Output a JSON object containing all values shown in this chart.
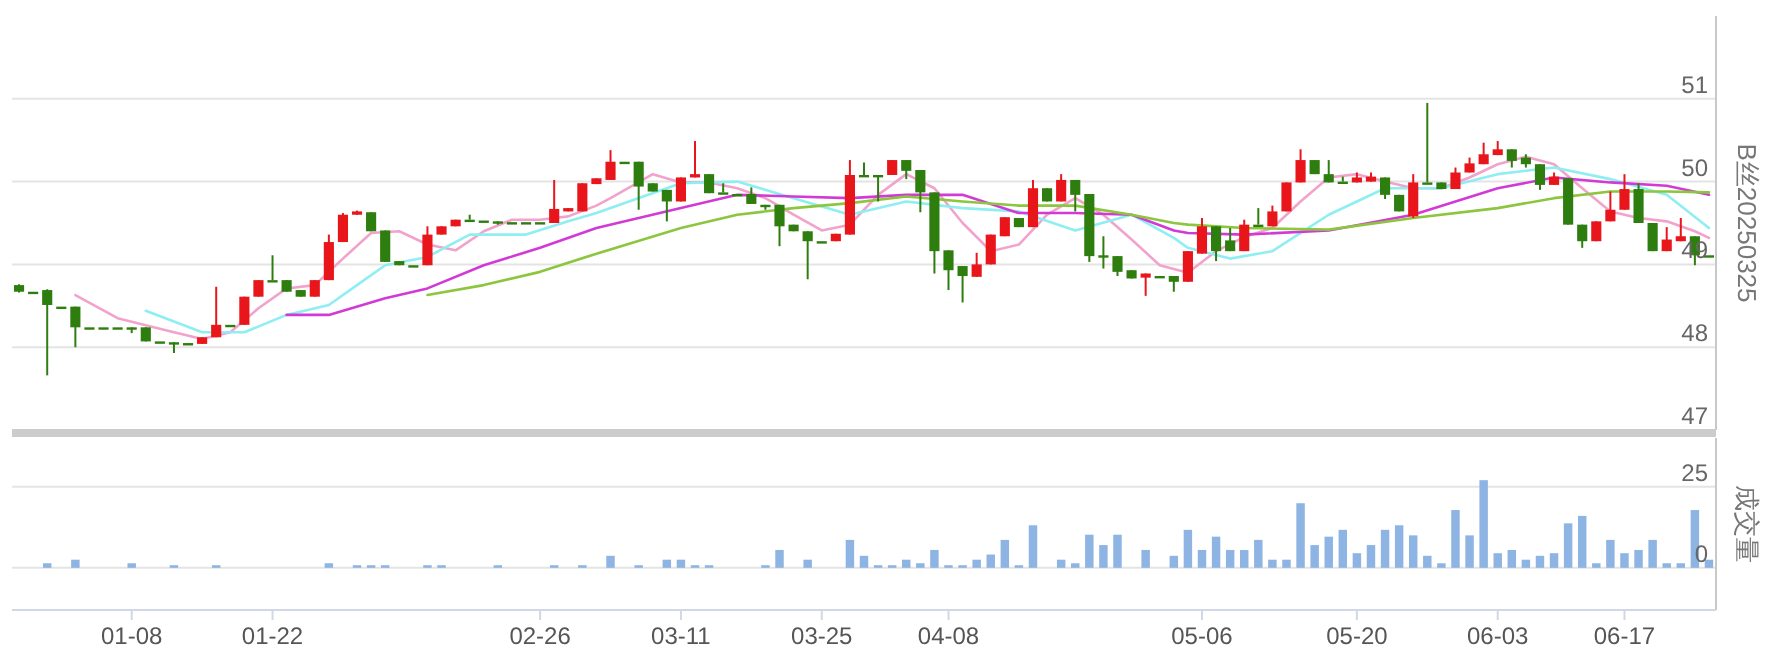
{
  "chart_data": [
    {
      "type": "candlestick",
      "ylabel": "B丝20250325",
      "tick_labels": "y",
      "grid": "y",
      "ylim": [
        47,
        52
      ],
      "yticks": [
        47,
        48,
        49,
        50,
        51
      ],
      "categories": [
        null,
        null,
        null,
        null,
        null,
        null,
        null,
        null,
        null,
        null,
        null,
        null,
        null,
        null,
        null,
        null,
        null,
        null,
        null,
        null,
        null,
        null,
        null,
        null,
        null,
        null,
        null,
        null,
        null,
        null,
        null,
        null,
        null,
        null,
        null,
        null,
        null,
        null,
        null,
        null,
        null,
        null,
        null,
        null,
        null,
        null,
        null,
        null,
        null,
        null,
        null,
        null,
        null,
        null,
        null,
        null,
        null,
        null,
        null,
        null,
        null,
        null,
        null,
        null,
        null,
        null,
        null,
        null,
        null,
        null,
        null,
        null,
        null,
        null,
        null,
        null,
        null,
        null,
        null,
        null,
        null,
        null,
        null,
        null,
        null,
        null,
        null,
        null,
        null,
        null,
        null,
        null,
        null,
        null,
        null,
        null,
        null,
        null,
        null,
        null,
        null,
        null,
        null,
        null,
        null,
        null,
        null,
        null,
        null,
        null,
        null,
        null,
        null,
        null,
        null,
        null,
        null,
        null,
        null,
        null,
        null
      ],
      "ohlc": [
        [
          48.75,
          48.76,
          48.66,
          48.67
        ],
        [
          48.67,
          48.67,
          48.67,
          48.67
        ],
        [
          48.69,
          48.7,
          47.66,
          48.51
        ],
        [
          48.49,
          48.49,
          48.49,
          48.49
        ],
        [
          48.49,
          48.49,
          48.0,
          48.24
        ],
        [
          48.24,
          48.24,
          48.24,
          48.24
        ],
        [
          48.24,
          48.24,
          48.24,
          48.24
        ],
        [
          48.24,
          48.24,
          48.24,
          48.24
        ],
        [
          48.24,
          48.24,
          48.17,
          48.24
        ],
        [
          48.24,
          48.24,
          48.07,
          48.07
        ],
        [
          48.07,
          48.07,
          48.07,
          48.07
        ],
        [
          48.06,
          48.06,
          47.93,
          48.05
        ],
        [
          48.05,
          48.05,
          48.05,
          48.05
        ],
        [
          48.04,
          48.12,
          48.04,
          48.12
        ],
        [
          48.12,
          48.73,
          48.12,
          48.27
        ],
        [
          48.27,
          48.27,
          48.27,
          48.27
        ],
        [
          48.27,
          48.61,
          48.27,
          48.61
        ],
        [
          48.61,
          48.81,
          48.61,
          48.81
        ],
        [
          48.81,
          49.11,
          48.81,
          48.81
        ],
        [
          48.81,
          48.81,
          48.67,
          48.67
        ],
        [
          48.69,
          48.69,
          48.61,
          48.61
        ],
        [
          48.61,
          48.81,
          48.61,
          48.81
        ],
        [
          48.81,
          49.36,
          48.81,
          49.27
        ],
        [
          49.27,
          49.62,
          49.27,
          49.6
        ],
        [
          49.6,
          49.65,
          49.6,
          49.64
        ],
        [
          49.63,
          49.63,
          49.4,
          49.4
        ],
        [
          49.41,
          49.41,
          49.03,
          49.03
        ],
        [
          49.04,
          49.04,
          48.99,
          48.99
        ],
        [
          48.99,
          48.99,
          48.99,
          48.99
        ],
        [
          48.99,
          49.46,
          48.99,
          49.36
        ],
        [
          49.36,
          49.46,
          49.36,
          49.46
        ],
        [
          49.46,
          49.54,
          49.46,
          49.54
        ],
        [
          49.54,
          49.6,
          49.54,
          49.54
        ],
        [
          49.53,
          49.53,
          49.53,
          49.53
        ],
        [
          49.52,
          49.52,
          49.48,
          49.52
        ],
        [
          49.51,
          49.51,
          49.51,
          49.51
        ],
        [
          49.51,
          49.51,
          49.51,
          49.51
        ],
        [
          49.51,
          49.51,
          49.51,
          49.51
        ],
        [
          49.5,
          50.02,
          49.5,
          49.67
        ],
        [
          49.64,
          49.68,
          49.64,
          49.68
        ],
        [
          49.64,
          49.98,
          49.64,
          49.98
        ],
        [
          49.97,
          50.04,
          49.97,
          50.04
        ],
        [
          50.02,
          50.38,
          50.02,
          50.24
        ],
        [
          50.24,
          50.24,
          50.24,
          50.24
        ],
        [
          50.24,
          50.24,
          49.66,
          49.94
        ],
        [
          49.98,
          49.98,
          49.88,
          49.88
        ],
        [
          49.9,
          49.9,
          49.52,
          49.76
        ],
        [
          49.76,
          50.05,
          49.76,
          50.05
        ],
        [
          50.05,
          50.49,
          50.05,
          50.09
        ],
        [
          50.09,
          50.09,
          49.86,
          49.86
        ],
        [
          49.87,
          49.98,
          49.87,
          49.87
        ],
        [
          49.85,
          49.85,
          49.85,
          49.85
        ],
        [
          49.85,
          49.93,
          49.73,
          49.73
        ],
        [
          49.72,
          49.72,
          49.66,
          49.72
        ],
        [
          49.72,
          49.72,
          49.22,
          49.46
        ],
        [
          49.48,
          49.48,
          49.4,
          49.4
        ],
        [
          49.4,
          49.4,
          48.82,
          49.28
        ],
        [
          49.28,
          49.28,
          49.28,
          49.28
        ],
        [
          49.28,
          49.37,
          49.28,
          49.37
        ],
        [
          49.36,
          50.26,
          49.36,
          50.08
        ],
        [
          50.08,
          50.23,
          50.08,
          50.08
        ],
        [
          50.08,
          50.08,
          49.76,
          50.08
        ],
        [
          50.08,
          50.26,
          50.08,
          50.26
        ],
        [
          50.26,
          50.26,
          50.03,
          50.13
        ],
        [
          50.14,
          50.14,
          49.63,
          49.87
        ],
        [
          49.87,
          49.87,
          48.89,
          49.16
        ],
        [
          49.17,
          49.17,
          48.69,
          48.93
        ],
        [
          48.98,
          48.98,
          48.54,
          48.86
        ],
        [
          48.85,
          49.14,
          48.85,
          49.0
        ],
        [
          49.0,
          49.36,
          49.0,
          49.36
        ],
        [
          49.34,
          49.57,
          49.34,
          49.57
        ],
        [
          49.56,
          49.56,
          49.45,
          49.45
        ],
        [
          49.45,
          50.02,
          49.45,
          49.92
        ],
        [
          49.92,
          49.92,
          49.76,
          49.76
        ],
        [
          49.76,
          50.09,
          49.76,
          50.02
        ],
        [
          50.02,
          50.02,
          49.64,
          49.84
        ],
        [
          49.85,
          49.85,
          49.03,
          49.1
        ],
        [
          49.11,
          49.34,
          48.95,
          49.11
        ],
        [
          49.1,
          49.1,
          48.86,
          48.91
        ],
        [
          48.93,
          48.93,
          48.83,
          48.83
        ],
        [
          48.84,
          48.89,
          48.62,
          48.89
        ],
        [
          48.86,
          48.86,
          48.86,
          48.86
        ],
        [
          48.86,
          48.86,
          48.67,
          48.79
        ],
        [
          48.79,
          49.16,
          48.79,
          49.16
        ],
        [
          49.13,
          49.56,
          49.13,
          49.46
        ],
        [
          49.46,
          49.46,
          49.04,
          49.16
        ],
        [
          49.29,
          49.44,
          49.16,
          49.16
        ],
        [
          49.16,
          49.54,
          49.16,
          49.48
        ],
        [
          49.48,
          49.68,
          49.48,
          49.48
        ],
        [
          49.46,
          49.71,
          49.46,
          49.64
        ],
        [
          49.64,
          49.99,
          49.64,
          49.99
        ],
        [
          49.99,
          50.39,
          49.99,
          50.26
        ],
        [
          50.26,
          50.26,
          50.09,
          50.09
        ],
        [
          50.09,
          50.26,
          49.99,
          49.99
        ],
        [
          50.0,
          50.06,
          50.0,
          50.0
        ],
        [
          49.99,
          50.11,
          49.99,
          50.05
        ],
        [
          50.0,
          50.11,
          50.0,
          50.06
        ],
        [
          50.05,
          50.05,
          49.79,
          49.84
        ],
        [
          49.84,
          49.84,
          49.64,
          49.64
        ],
        [
          49.58,
          50.09,
          49.56,
          49.99
        ],
        [
          49.99,
          50.95,
          49.99,
          49.99
        ],
        [
          49.99,
          49.99,
          49.91,
          49.91
        ],
        [
          49.91,
          50.17,
          49.91,
          50.11
        ],
        [
          50.11,
          50.29,
          50.11,
          50.22
        ],
        [
          50.21,
          50.47,
          50.21,
          50.33
        ],
        [
          50.32,
          50.49,
          50.32,
          50.39
        ],
        [
          50.39,
          50.39,
          50.17,
          50.25
        ],
        [
          50.29,
          50.33,
          50.17,
          50.21
        ],
        [
          50.21,
          50.21,
          49.9,
          49.96
        ],
        [
          49.96,
          50.11,
          49.96,
          50.06
        ],
        [
          50.04,
          50.04,
          49.48,
          49.48
        ],
        [
          49.48,
          49.48,
          49.2,
          49.28
        ],
        [
          49.28,
          49.52,
          49.28,
          49.52
        ],
        [
          49.52,
          49.88,
          49.52,
          49.66
        ],
        [
          49.66,
          50.09,
          49.66,
          49.91
        ],
        [
          49.91,
          49.98,
          49.5,
          49.5
        ],
        [
          49.5,
          49.5,
          49.16,
          49.16
        ],
        [
          49.16,
          49.45,
          49.16,
          49.3
        ],
        [
          49.28,
          49.56,
          49.28,
          49.34
        ],
        [
          49.34,
          49.34,
          48.99,
          49.11
        ],
        [
          49.11,
          49.11,
          49.11,
          49.11
        ]
      ],
      "colors": [
        "#2e7d0f",
        "#2e7d0f",
        "#2e7d0f",
        "#2e7d0f",
        "#2e7d0f",
        "#2e7d0f",
        "#2e7d0f",
        "#2e7d0f",
        "#2e7d0f",
        "#2e7d0f",
        "#2e7d0f",
        "#2e7d0f",
        "#2e7d0f",
        "#e8161b",
        "#e8161b",
        "#2e7d0f",
        "#e8161b",
        "#e8161b",
        "#2e7d0f",
        "#2e7d0f",
        "#2e7d0f",
        "#e8161b",
        "#e8161b",
        "#e8161b",
        "#e8161b",
        "#2e7d0f",
        "#2e7d0f",
        "#2e7d0f",
        "#2e7d0f",
        "#e8161b",
        "#e8161b",
        "#e8161b",
        "#2e7d0f",
        "#2e7d0f",
        "#2e7d0f",
        "#2e7d0f",
        "#2e7d0f",
        "#2e7d0f",
        "#e8161b",
        "#e8161b",
        "#e8161b",
        "#e8161b",
        "#e8161b",
        "#2e7d0f",
        "#2e7d0f",
        "#2e7d0f",
        "#2e7d0f",
        "#e8161b",
        "#e8161b",
        "#2e7d0f",
        "#2e7d0f",
        "#2e7d0f",
        "#2e7d0f",
        "#2e7d0f",
        "#2e7d0f",
        "#2e7d0f",
        "#2e7d0f",
        "#2e7d0f",
        "#e8161b",
        "#e8161b",
        "#2e7d0f",
        "#2e7d0f",
        "#e8161b",
        "#2e7d0f",
        "#2e7d0f",
        "#2e7d0f",
        "#2e7d0f",
        "#2e7d0f",
        "#e8161b",
        "#e8161b",
        "#e8161b",
        "#2e7d0f",
        "#e8161b",
        "#2e7d0f",
        "#e8161b",
        "#2e7d0f",
        "#2e7d0f",
        "#2e7d0f",
        "#2e7d0f",
        "#2e7d0f",
        "#e8161b",
        "#2e7d0f",
        "#2e7d0f",
        "#e8161b",
        "#e8161b",
        "#2e7d0f",
        "#2e7d0f",
        "#e8161b",
        "#2e7d0f",
        "#e8161b",
        "#e8161b",
        "#e8161b",
        "#2e7d0f",
        "#2e7d0f",
        "#2e7d0f",
        "#e8161b",
        "#e8161b",
        "#2e7d0f",
        "#2e7d0f",
        "#e8161b",
        "#2e7d0f",
        "#2e7d0f",
        "#e8161b",
        "#e8161b",
        "#e8161b",
        "#e8161b",
        "#2e7d0f",
        "#2e7d0f",
        "#2e7d0f",
        "#e8161b",
        "#2e7d0f",
        "#2e7d0f",
        "#e8161b",
        "#e8161b",
        "#e8161b",
        "#2e7d0f",
        "#2e7d0f",
        "#e8161b",
        "#e8161b",
        "#2e7d0f",
        "#2e7d0f"
      ],
      "series": [
        {
          "type": "line",
          "color": "#f2a3cc",
          "values": [
            null,
            null,
            null,
            null,
            48.63,
            null,
            null,
            48.35,
            null,
            null,
            null,
            48.18,
            null,
            48.1,
            null,
            48.18,
            null,
            48.47,
            null,
            48.71,
            null,
            48.75,
            null,
            49.07,
            null,
            49.38,
            null,
            49.4,
            null,
            49.24,
            null,
            49.17,
            null,
            49.4,
            null,
            49.54,
            null,
            49.54,
            null,
            49.58,
            null,
            49.71,
            49.8,
            null,
            null,
            50.09,
            null,
            49.99,
            null,
            49.99,
            null,
            49.92,
            null,
            49.8,
            null,
            49.6,
            null,
            49.41,
            null,
            49.48,
            null,
            49.84,
            null,
            50.09,
            null,
            49.92,
            null,
            49.5,
            null,
            49.16,
            null,
            49.24,
            null,
            49.6,
            null,
            49.8,
            null,
            49.6,
            null,
            49.3,
            null,
            48.99,
            null,
            48.9,
            null,
            49.16,
            null,
            49.33,
            null,
            49.44,
            null,
            49.76,
            null,
            50.05,
            null,
            50.09,
            null,
            50.0,
            null,
            49.92,
            null,
            49.92,
            null,
            50.05,
            null,
            50.21,
            null,
            50.3,
            null,
            50.21,
            null,
            49.92,
            null,
            49.64,
            null,
            49.56,
            null,
            49.52,
            null,
            49.4,
            49.32
          ]
        },
        {
          "type": "line",
          "color": "#8eeef2",
          "values": [
            null,
            null,
            null,
            null,
            null,
            null,
            null,
            null,
            null,
            48.44,
            null,
            null,
            null,
            48.18,
            null,
            null,
            48.18,
            null,
            null,
            48.39,
            null,
            null,
            48.51,
            null,
            48.75,
            null,
            48.99,
            null,
            null,
            49.09,
            null,
            null,
            49.36,
            null,
            null,
            null,
            49.36,
            null,
            null,
            49.52,
            null,
            49.62,
            49.68,
            null,
            null,
            null,
            null,
            49.98,
            null,
            null,
            null,
            50.0,
            null,
            null,
            null,
            49.8,
            null,
            null,
            null,
            49.6,
            null,
            null,
            null,
            49.76,
            null,
            null,
            null,
            49.68,
            null,
            null,
            null,
            49.64,
            null,
            null,
            null,
            49.41,
            null,
            null,
            null,
            49.6,
            null,
            null,
            49.32,
            49.2,
            null,
            null,
            49.07,
            null,
            null,
            49.16,
            null,
            null,
            null,
            49.6,
            null,
            null,
            null,
            49.92,
            null,
            null,
            null,
            49.92,
            null,
            null,
            null,
            50.09,
            null,
            null,
            null,
            50.17,
            null,
            null,
            null,
            50.03,
            null,
            null,
            null,
            49.84,
            null,
            null,
            49.44
          ]
        },
        {
          "type": "line",
          "color": "#d23ad6",
          "values": [
            null,
            null,
            null,
            null,
            null,
            null,
            null,
            null,
            null,
            null,
            null,
            null,
            null,
            null,
            null,
            null,
            null,
            null,
            null,
            48.39,
            null,
            null,
            48.39,
            null,
            null,
            null,
            48.59,
            null,
            null,
            48.71,
            null,
            null,
            null,
            48.99,
            null,
            null,
            null,
            49.2,
            null,
            null,
            null,
            49.44,
            null,
            null,
            null,
            null,
            null,
            49.68,
            null,
            null,
            null,
            49.84,
            null,
            null,
            null,
            49.82,
            null,
            null,
            null,
            49.8,
            null,
            null,
            null,
            49.84,
            null,
            null,
            null,
            49.84,
            null,
            null,
            null,
            49.62,
            null,
            null,
            null,
            49.62,
            null,
            null,
            null,
            49.6,
            null,
            null,
            49.41,
            49.38,
            null,
            null,
            null,
            49.36,
            null,
            null,
            null,
            null,
            null,
            49.41,
            null,
            null,
            null,
            null,
            null,
            49.6,
            null,
            null,
            null,
            null,
            null,
            49.92,
            null,
            null,
            null,
            50.05,
            null,
            null,
            null,
            49.99,
            null,
            null,
            null,
            49.95,
            null,
            null,
            49.84
          ]
        },
        {
          "type": "line",
          "color": "#8cc63f",
          "values": [
            null,
            null,
            null,
            null,
            null,
            null,
            null,
            null,
            null,
            null,
            null,
            null,
            null,
            null,
            null,
            null,
            null,
            null,
            null,
            null,
            null,
            null,
            null,
            null,
            null,
            null,
            null,
            null,
            null,
            48.63,
            null,
            null,
            null,
            48.75,
            null,
            null,
            null,
            48.91,
            null,
            null,
            null,
            49.13,
            null,
            null,
            null,
            null,
            null,
            49.44,
            null,
            null,
            null,
            49.6,
            null,
            null,
            null,
            49.68,
            null,
            null,
            null,
            49.74,
            null,
            null,
            null,
            49.82,
            null,
            null,
            null,
            49.76,
            null,
            null,
            null,
            49.71,
            null,
            null,
            null,
            49.71,
            null,
            null,
            null,
            49.6,
            null,
            null,
            49.5,
            49.48,
            null,
            null,
            null,
            49.44,
            null,
            null,
            null,
            null,
            null,
            49.42,
            null,
            null,
            null,
            null,
            null,
            49.56,
            null,
            null,
            null,
            null,
            null,
            49.68,
            null,
            null,
            null,
            49.8,
            null,
            null,
            null,
            49.88,
            null,
            null,
            null,
            49.88,
            null,
            null,
            49.87
          ]
        }
      ]
    },
    {
      "type": "bar",
      "ylabel": "成交量",
      "grid": "y",
      "ylim": [
        -13,
        40
      ],
      "yticks": [
        0,
        25
      ],
      "color": "#8db4e2",
      "categories": [
        null,
        null,
        null,
        null,
        null,
        null,
        null,
        null,
        "01-08",
        null,
        null,
        null,
        null,
        null,
        null,
        null,
        null,
        null,
        "01-22",
        null,
        null,
        null,
        null,
        null,
        null,
        null,
        null,
        null,
        null,
        null,
        null,
        null,
        null,
        null,
        null,
        null,
        null,
        "02-26",
        null,
        null,
        null,
        null,
        null,
        null,
        null,
        null,
        null,
        "03-11",
        null,
        null,
        null,
        null,
        null,
        null,
        null,
        null,
        null,
        "03-25",
        null,
        null,
        null,
        null,
        null,
        null,
        null,
        null,
        "04-08",
        null,
        null,
        null,
        null,
        null,
        null,
        null,
        null,
        null,
        null,
        null,
        null,
        null,
        null,
        null,
        null,
        null,
        "05-06",
        null,
        null,
        null,
        null,
        null,
        null,
        null,
        null,
        null,
        null,
        "05-20",
        null,
        null,
        null,
        null,
        null,
        null,
        null,
        null,
        null,
        "06-03",
        null,
        null,
        null,
        null,
        null,
        null,
        null,
        null,
        "06-17",
        null,
        null,
        null,
        null,
        null,
        null
      ],
      "values": [
        0,
        0,
        1.4,
        0,
        2.5,
        0,
        0,
        0,
        1.4,
        0,
        0,
        0.8,
        0,
        0,
        0.8,
        0,
        0,
        0,
        0,
        0,
        0,
        0,
        1.4,
        0,
        0.8,
        0.8,
        0.8,
        0,
        0,
        0.8,
        0.8,
        0,
        0,
        0,
        0.8,
        0,
        0,
        0,
        0.8,
        0,
        0.8,
        0,
        3.7,
        0,
        0.8,
        0,
        2.5,
        2.5,
        0.8,
        0.8,
        0,
        0,
        0,
        0.8,
        5.5,
        0,
        2.5,
        0,
        0,
        8.6,
        3.7,
        0.8,
        0.8,
        2.5,
        1.4,
        5.5,
        0.8,
        0.8,
        2.5,
        4.1,
        8.6,
        0.8,
        13.1,
        0,
        2.5,
        1.4,
        10.2,
        7.0,
        10.2,
        0,
        5.5,
        0,
        3.7,
        11.7,
        5.5,
        9.6,
        5.5,
        5.5,
        8.6,
        2.5,
        2.5,
        19.9,
        7.0,
        9.6,
        11.7,
        4.5,
        7.0,
        11.7,
        13.1,
        10.0,
        3.7,
        1.4,
        17.8,
        10.0,
        27.0,
        4.5,
        5.5,
        2.5,
        3.7,
        4.5,
        13.7,
        16.0,
        1.4,
        8.6,
        4.5,
        5.5,
        8.6,
        1.4,
        1.4,
        17.8,
        2.5
      ]
    }
  ]
}
